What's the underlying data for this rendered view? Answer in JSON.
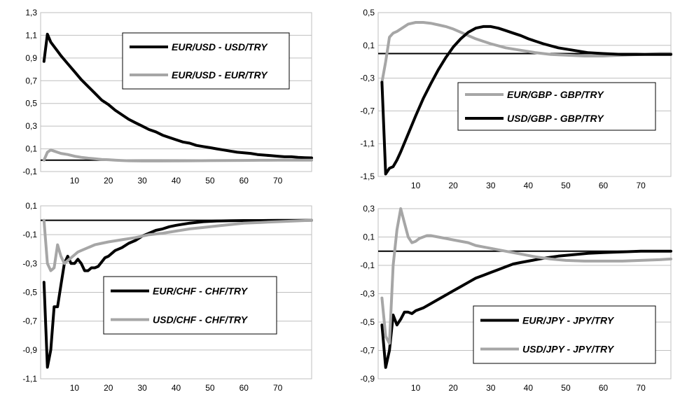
{
  "colors": {
    "black_series": "#000000",
    "gray_series": "#a6a6a6",
    "grid": "#bfbfbf",
    "zero_line": "#000000"
  },
  "chart_data": [
    {
      "type": "line",
      "xlim": [
        0,
        80
      ],
      "ylim": [
        -0.1,
        1.3
      ],
      "xticks": [
        10,
        20,
        30,
        40,
        50,
        60,
        70
      ],
      "xtick_labels": [
        "10",
        "20",
        "30",
        "40",
        "50",
        "60",
        "70"
      ],
      "yticks": [
        -0.1,
        0.1,
        0.3,
        0.5,
        0.7,
        0.9,
        1.1,
        1.3
      ],
      "ytick_labels": [
        "-0,1",
        "0,1",
        "0,3",
        "0,5",
        "0,7",
        "0,9",
        "1,1",
        "1,3"
      ],
      "grid": "horizontal",
      "legend_position": "upper-right",
      "series": [
        {
          "name": "EUR/USD - USD/TRY",
          "color": "#000000",
          "x": [
            1,
            2,
            3,
            4,
            5,
            6,
            8,
            10,
            12,
            14,
            16,
            18,
            20,
            22,
            24,
            26,
            28,
            30,
            32,
            34,
            36,
            38,
            40,
            42,
            44,
            46,
            48,
            50,
            52,
            54,
            56,
            58,
            60,
            62,
            64,
            66,
            68,
            70,
            72,
            74,
            76,
            78,
            80
          ],
          "y": [
            0.87,
            1.11,
            1.04,
            1.0,
            0.96,
            0.92,
            0.85,
            0.78,
            0.71,
            0.65,
            0.59,
            0.53,
            0.49,
            0.44,
            0.4,
            0.36,
            0.33,
            0.3,
            0.27,
            0.25,
            0.22,
            0.2,
            0.18,
            0.16,
            0.15,
            0.13,
            0.12,
            0.11,
            0.1,
            0.09,
            0.08,
            0.07,
            0.065,
            0.06,
            0.05,
            0.045,
            0.04,
            0.035,
            0.03,
            0.03,
            0.025,
            0.022,
            0.02
          ]
        },
        {
          "name": "EUR/USD - EUR/TRY",
          "color": "#a6a6a6",
          "x": [
            1,
            2,
            3,
            4,
            6,
            8,
            10,
            12,
            14,
            16,
            18,
            20,
            22,
            24,
            26,
            28,
            30,
            35,
            40,
            45,
            50,
            55,
            60,
            65,
            70,
            75,
            80
          ],
          "y": [
            0.0,
            0.07,
            0.09,
            0.08,
            0.06,
            0.05,
            0.035,
            0.025,
            0.018,
            0.012,
            0.007,
            0.004,
            0.0,
            -0.003,
            -0.005,
            -0.006,
            -0.007,
            -0.007,
            -0.006,
            -0.005,
            -0.004,
            -0.003,
            -0.002,
            -0.001,
            0.0,
            0.0,
            0.0
          ]
        }
      ]
    },
    {
      "type": "line",
      "xlim": [
        0,
        78
      ],
      "ylim": [
        -1.5,
        0.5
      ],
      "xticks": [
        10,
        20,
        30,
        40,
        50,
        60,
        70
      ],
      "xtick_labels": [
        "10",
        "20",
        "30",
        "40",
        "50",
        "60",
        "70"
      ],
      "yticks": [
        -1.5,
        -1.1,
        -0.7,
        -0.3,
        0.1,
        0.5
      ],
      "ytick_labels": [
        "-1,5",
        "-1,1",
        "-0,7",
        "-0,3",
        "0,1",
        "0,5"
      ],
      "grid": "horizontal",
      "legend_position": "lower-right",
      "series": [
        {
          "name": "EUR/GBP - GBP/TRY",
          "color": "#a6a6a6",
          "x": [
            1,
            2,
            3,
            4,
            5,
            6,
            8,
            10,
            12,
            14,
            16,
            18,
            20,
            22,
            24,
            26,
            28,
            30,
            34,
            38,
            42,
            46,
            50,
            55,
            60,
            65,
            70,
            75,
            78
          ],
          "y": [
            -0.35,
            -0.1,
            0.2,
            0.25,
            0.27,
            0.3,
            0.36,
            0.38,
            0.38,
            0.37,
            0.35,
            0.33,
            0.3,
            0.26,
            0.22,
            0.18,
            0.15,
            0.12,
            0.07,
            0.04,
            0.01,
            -0.01,
            -0.02,
            -0.03,
            -0.03,
            -0.02,
            -0.01,
            0.0,
            0.0
          ]
        },
        {
          "name": "USD/GBP - GBP/TRY",
          "color": "#000000",
          "x": [
            1,
            2,
            3,
            4,
            5,
            6,
            8,
            10,
            12,
            14,
            16,
            18,
            20,
            22,
            24,
            26,
            28,
            30,
            32,
            34,
            36,
            38,
            40,
            44,
            48,
            52,
            56,
            60,
            65,
            70,
            75,
            78
          ],
          "y": [
            -0.35,
            -1.47,
            -1.4,
            -1.38,
            -1.3,
            -1.2,
            -0.98,
            -0.76,
            -0.55,
            -0.37,
            -0.2,
            -0.05,
            0.08,
            0.18,
            0.26,
            0.31,
            0.33,
            0.33,
            0.31,
            0.28,
            0.25,
            0.22,
            0.18,
            0.12,
            0.07,
            0.04,
            0.01,
            0.0,
            -0.01,
            -0.01,
            -0.01,
            -0.01
          ]
        }
      ]
    },
    {
      "type": "line",
      "xlim": [
        0,
        80
      ],
      "ylim": [
        -1.1,
        0.1
      ],
      "xticks": [
        10,
        20,
        30,
        40,
        50,
        60,
        70
      ],
      "xtick_labels": [
        "10",
        "20",
        "30",
        "40",
        "50",
        "60",
        "70"
      ],
      "yticks": [
        -1.1,
        -0.9,
        -0.7,
        -0.5,
        -0.3,
        -0.1,
        0.1
      ],
      "ytick_labels": [
        "-1,1",
        "-0,9",
        "-0,7",
        "-0,5",
        "-0,3",
        "-0,1",
        "0,1"
      ],
      "grid": "horizontal",
      "legend_position": "lower-right",
      "series": [
        {
          "name": "EUR/CHF - CHF/TRY",
          "color": "#000000",
          "x": [
            1,
            2,
            3,
            4,
            5,
            6,
            7,
            8,
            9,
            10,
            11,
            12,
            13,
            14,
            15,
            16,
            17,
            18,
            19,
            20,
            22,
            24,
            26,
            28,
            30,
            32,
            34,
            36,
            38,
            40,
            44,
            48,
            52,
            56,
            60,
            65,
            70,
            75,
            80
          ],
          "y": [
            -0.43,
            -1.02,
            -0.9,
            -0.6,
            -0.6,
            -0.45,
            -0.3,
            -0.25,
            -0.3,
            -0.3,
            -0.27,
            -0.3,
            -0.35,
            -0.35,
            -0.33,
            -0.33,
            -0.32,
            -0.29,
            -0.26,
            -0.25,
            -0.21,
            -0.19,
            -0.16,
            -0.14,
            -0.11,
            -0.09,
            -0.07,
            -0.06,
            -0.045,
            -0.035,
            -0.02,
            -0.01,
            -0.005,
            -0.003,
            -0.002,
            -0.002,
            -0.001,
            -0.001,
            0.0
          ]
        },
        {
          "name": "USD/CHF - CHF/TRY",
          "color": "#a6a6a6",
          "x": [
            1,
            2,
            3,
            4,
            5,
            6,
            7,
            8,
            9,
            10,
            11,
            12,
            14,
            16,
            18,
            20,
            24,
            28,
            32,
            36,
            40,
            44,
            48,
            52,
            56,
            60,
            65,
            70,
            75,
            80
          ],
          "y": [
            0.0,
            -0.3,
            -0.35,
            -0.33,
            -0.17,
            -0.25,
            -0.3,
            -0.28,
            -0.26,
            -0.24,
            -0.22,
            -0.21,
            -0.19,
            -0.17,
            -0.16,
            -0.15,
            -0.135,
            -0.12,
            -0.1,
            -0.09,
            -0.075,
            -0.06,
            -0.05,
            -0.04,
            -0.03,
            -0.02,
            -0.015,
            -0.01,
            -0.005,
            0.0
          ]
        }
      ]
    },
    {
      "type": "line",
      "xlim": [
        0,
        78
      ],
      "ylim": [
        -0.9,
        0.3
      ],
      "xticks": [
        10,
        20,
        30,
        40,
        50,
        60,
        70
      ],
      "xtick_labels": [
        "10",
        "20",
        "30",
        "40",
        "50",
        "60",
        "70"
      ],
      "yticks": [
        -0.9,
        -0.7,
        -0.5,
        -0.3,
        -0.1,
        0.1,
        0.3
      ],
      "ytick_labels": [
        "-0,9",
        "-0,7",
        "-0,5",
        "-0,3",
        "-0,1",
        "0,1",
        "0,3"
      ],
      "grid": "horizontal",
      "legend_position": "lower-right",
      "series": [
        {
          "name": "EUR/JPY - JPY/TRY",
          "color": "#000000",
          "x": [
            1,
            2,
            3,
            4,
            5,
            6,
            7,
            8,
            9,
            10,
            12,
            14,
            16,
            18,
            20,
            22,
            24,
            26,
            28,
            30,
            32,
            34,
            36,
            38,
            40,
            44,
            48,
            52,
            56,
            60,
            65,
            70,
            75,
            78
          ],
          "y": [
            -0.52,
            -0.82,
            -0.7,
            -0.45,
            -0.52,
            -0.48,
            -0.43,
            -0.43,
            -0.44,
            -0.42,
            -0.4,
            -0.37,
            -0.34,
            -0.31,
            -0.28,
            -0.25,
            -0.22,
            -0.19,
            -0.17,
            -0.15,
            -0.13,
            -0.11,
            -0.09,
            -0.08,
            -0.07,
            -0.05,
            -0.035,
            -0.025,
            -0.015,
            -0.01,
            -0.005,
            0.0,
            0.0,
            0.0
          ]
        },
        {
          "name": "USD/JPY - JPY/TRY",
          "color": "#a6a6a6",
          "x": [
            1,
            2,
            3,
            4,
            5,
            6,
            7,
            8,
            9,
            10,
            11,
            12,
            13,
            14,
            16,
            18,
            20,
            22,
            24,
            26,
            28,
            30,
            34,
            38,
            42,
            46,
            50,
            55,
            60,
            65,
            70,
            75,
            78
          ],
          "y": [
            -0.33,
            -0.6,
            -0.65,
            -0.1,
            0.15,
            0.3,
            0.2,
            0.1,
            0.06,
            0.07,
            0.09,
            0.1,
            0.11,
            0.11,
            0.1,
            0.09,
            0.08,
            0.07,
            0.06,
            0.04,
            0.03,
            0.02,
            0.0,
            -0.02,
            -0.04,
            -0.055,
            -0.065,
            -0.07,
            -0.07,
            -0.07,
            -0.065,
            -0.06,
            -0.055
          ]
        }
      ]
    }
  ]
}
